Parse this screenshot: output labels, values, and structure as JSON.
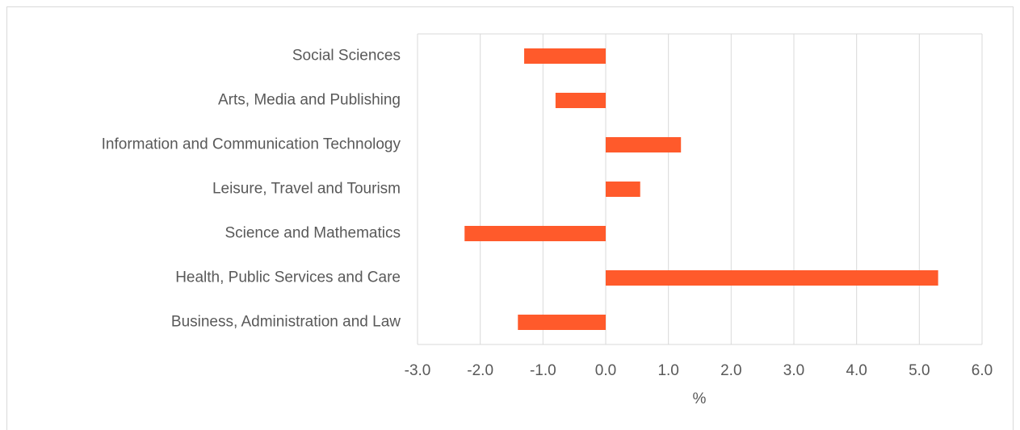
{
  "chart_data": {
    "type": "barh",
    "categories": [
      "Social Sciences",
      "Arts, Media and Publishing",
      "Information and Communication Technology",
      "Leisure, Travel and Tourism",
      "Science and Mathematics",
      "Health, Public Services and Care",
      "Business, Administration and Law"
    ],
    "values": [
      -1.3,
      -0.8,
      1.2,
      0.55,
      -2.25,
      5.3,
      -1.4
    ],
    "color": "#ff5a2b",
    "xlabel": "%",
    "xlim": [
      -3,
      6
    ],
    "xticks": [
      {
        "value": -3,
        "label": "-3.0"
      },
      {
        "value": -2,
        "label": "-2.0"
      },
      {
        "value": -1,
        "label": "-1.0"
      },
      {
        "value": 0,
        "label": "0.0"
      },
      {
        "value": 1,
        "label": "1.0"
      },
      {
        "value": 2,
        "label": "2.0"
      },
      {
        "value": 3,
        "label": "3.0"
      },
      {
        "value": 4,
        "label": "4.0"
      },
      {
        "value": 5,
        "label": "5.0"
      },
      {
        "value": 6,
        "label": "6.0"
      }
    ],
    "grid": true
  }
}
